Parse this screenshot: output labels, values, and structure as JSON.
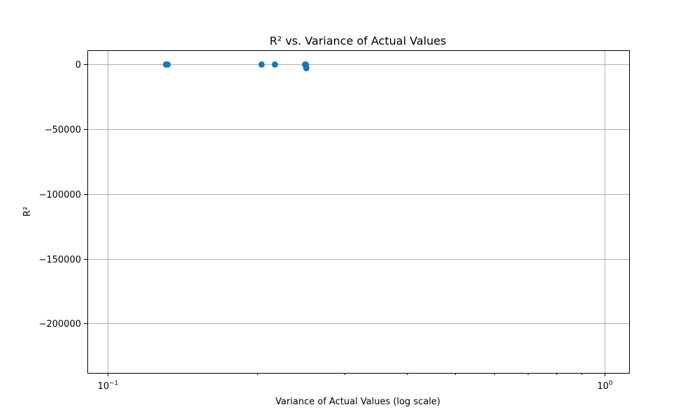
{
  "chart_data": {
    "type": "scatter",
    "title": "R² vs. Variance of Actual Values",
    "xlabel": "Variance of Actual Values (log scale)",
    "ylabel": "R²",
    "x_scale": "log",
    "xlim": [
      0.091,
      1.12
    ],
    "ylim": [
      -238000,
      11000
    ],
    "grid": true,
    "color": "#1f77b4",
    "x_major_ticks": [
      {
        "value": 0.1,
        "base": "10",
        "exp": "−1"
      },
      {
        "value": 1,
        "base": "10",
        "exp": "0"
      }
    ],
    "x_minor_ticks": [
      0.2,
      0.3,
      0.4,
      0.5,
      0.6,
      0.7,
      0.8,
      0.9
    ],
    "y_ticks": [
      {
        "value": 0,
        "label": "0"
      },
      {
        "value": -50000,
        "label": "−50000"
      },
      {
        "value": -100000,
        "label": "−100000"
      },
      {
        "value": -150000,
        "label": "−150000"
      },
      {
        "value": -200000,
        "label": "−200000"
      }
    ],
    "points": [
      {
        "x": 0.131,
        "y": 0
      },
      {
        "x": 0.132,
        "y": 0
      },
      {
        "x": 0.204,
        "y": 0
      },
      {
        "x": 0.217,
        "y": 0
      },
      {
        "x": 0.2495,
        "y": 0
      },
      {
        "x": 0.2505,
        "y": 0
      },
      {
        "x": 0.2505,
        "y": -1000
      },
      {
        "x": 0.251,
        "y": -2800
      }
    ]
  }
}
